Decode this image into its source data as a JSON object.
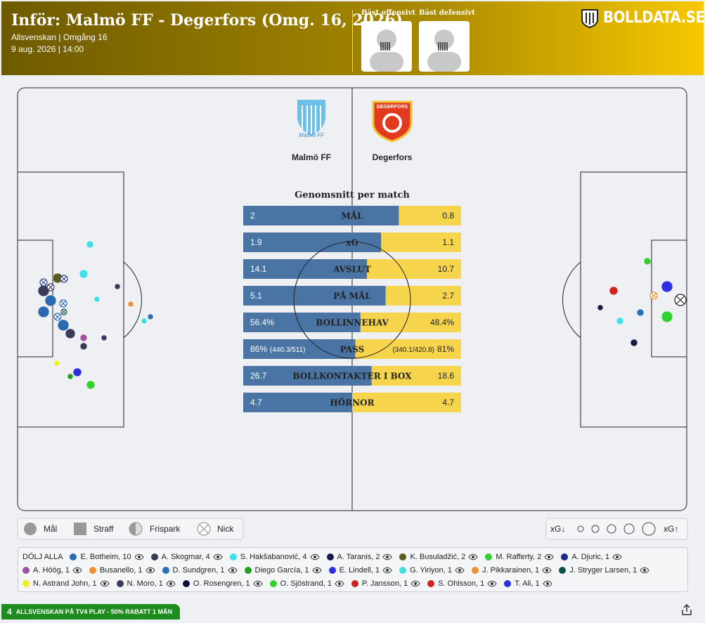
{
  "header": {
    "title": "Inför: Malmö FF - Degerfors (Omg. 16, 2026)",
    "subtitle": "Allsvenskan | Omgång 16",
    "date": "9 aug. 2026 | 14:00",
    "best_offensive": "Bäst offensivt",
    "best_defensive": "Bäst defensivt",
    "brand": "BOLLDATA.SE"
  },
  "teams": {
    "home": "Malmö FF",
    "away": "Degerfors"
  },
  "stats": {
    "title": "Genomsnitt per match",
    "home_color": "#4a74a3",
    "away_color": "#f6d44c",
    "rows": [
      {
        "label": "MÅL",
        "home": 2,
        "away": 0.8
      },
      {
        "label": "xG",
        "home": 1.9,
        "away": 1.1
      },
      {
        "label": "AVSLUT",
        "home": 14.1,
        "away": 10.7
      },
      {
        "label": "PÅ MÅL",
        "home": 5.1,
        "away": 2.7
      },
      {
        "label": "BOLLINNEHAV",
        "home": 56.4,
        "away": 48.4,
        "home_label": "56.4%",
        "away_label": "48.4%"
      },
      {
        "label": "PASS",
        "home": 86,
        "away": 81,
        "home_label": "86%",
        "away_label": "81%",
        "home_detail": "(440.3/511)",
        "away_detail": "(340.1/420.8)"
      },
      {
        "label": "BOLLKONTAKTER I BOX",
        "home": 26.7,
        "away": 18.6
      },
      {
        "label": "HÖRNOR",
        "home": 4.7,
        "away": 4.7
      }
    ]
  },
  "legend": {
    "shot_types": [
      "Mål",
      "Straff",
      "Frispark",
      "Nick"
    ],
    "xg_low": "xG↓",
    "xg_high": "xG↑"
  },
  "players": {
    "hide_all": "DÖLJ ALLA",
    "list": [
      {
        "name": "E. Botheim, 10",
        "color": "#2a6ab0"
      },
      {
        "name": "A. Skogmar, 4",
        "color": "#3a3a5a"
      },
      {
        "name": "S. Hakšabanović, 4",
        "color": "#40e0e8"
      },
      {
        "name": "A. Taranis, 2",
        "color": "#1a1a4a"
      },
      {
        "name": "K. Busuladžić, 2",
        "color": "#5a5a1a"
      },
      {
        "name": "M. Rafferty, 2",
        "color": "#30d030"
      },
      {
        "name": "A. Djuric, 1",
        "color": "#1a2a8a"
      },
      {
        "name": "A. Höög, 1",
        "color": "#a050a0"
      },
      {
        "name": "Busanello, 1",
        "color": "#f09030"
      },
      {
        "name": "D. Sundgren, 1",
        "color": "#2a70b8"
      },
      {
        "name": "Diego García, 1",
        "color": "#20a020"
      },
      {
        "name": "E. Lindell, 1",
        "color": "#3030e0"
      },
      {
        "name": "G. Yiriyon, 1",
        "color": "#40e0e0"
      },
      {
        "name": "J. Pikkarainen, 1",
        "color": "#f09030"
      },
      {
        "name": "J. Stryger Larsen, 1",
        "color": "#105050"
      },
      {
        "name": "N. Astrand John, 1",
        "color": "#f0f020"
      },
      {
        "name": "N. Moro, 1",
        "color": "#3a3a5a"
      },
      {
        "name": "O. Rosengren, 1",
        "color": "#101040"
      },
      {
        "name": "O. Sjöstrand, 1",
        "color": "#30d030"
      },
      {
        "name": "P. Jansson, 1",
        "color": "#d02020"
      },
      {
        "name": "S. Ohlsson, 1",
        "color": "#d02020"
      },
      {
        "name": "T. Ali, 1",
        "color": "#3030e0"
      }
    ]
  },
  "footer": {
    "badge": "4",
    "promo": "ALLSVENSKAN PÅ TV4 PLAY - 50% RABATT 1 MÅN"
  }
}
